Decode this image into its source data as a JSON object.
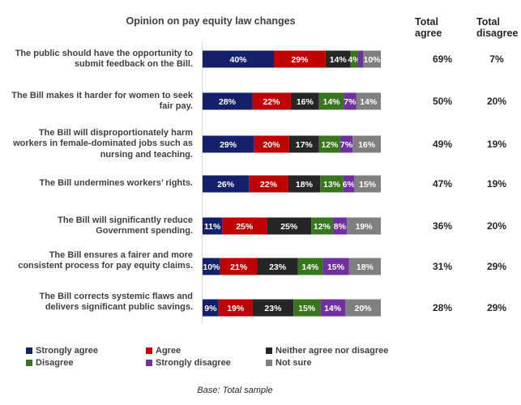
{
  "chart_data": {
    "type": "bar",
    "stacked": true,
    "orientation": "horizontal",
    "title": "Opinion on pay equity law changes",
    "categories": [
      "The public should have the opportunity to submit feedback on the Bill.",
      "The Bill makes it harder for women to seek fair pay.",
      "The Bill will disproportionately harm workers in female-dominated jobs such as nursing and teaching.",
      "The Bill undermines workers’ rights.",
      "The Bill will significantly reduce Government spending.",
      "The Bill ensures a fairer and more consistent process for pay equity claims.",
      "The Bill corrects systemic flaws and delivers significant public savings."
    ],
    "series": [
      {
        "name": "Strongly agree",
        "color": "#14206b",
        "values": [
          40,
          28,
          29,
          26,
          11,
          10,
          9
        ]
      },
      {
        "name": "Agree",
        "color": "#c00000",
        "values": [
          29,
          22,
          20,
          22,
          25,
          21,
          19
        ]
      },
      {
        "name": "Neither agree nor disagree",
        "color": "#262626",
        "values": [
          14,
          16,
          17,
          18,
          25,
          23,
          23
        ]
      },
      {
        "name": "Disagree",
        "color": "#38761d",
        "values": [
          4,
          14,
          12,
          13,
          12,
          14,
          15
        ]
      },
      {
        "name": "Strongly disagree",
        "color": "#7030a0",
        "values": [
          3,
          7,
          7,
          6,
          8,
          15,
          14
        ]
      },
      {
        "name": "Not sure",
        "color": "#7f7f7f",
        "values": [
          10,
          14,
          16,
          15,
          19,
          18,
          20
        ]
      }
    ],
    "hidden_labels": [
      [
        0,
        4
      ]
    ],
    "totals_headers": {
      "agree": "Total agree",
      "disagree": "Total disagree"
    },
    "total_agree": [
      "69%",
      "50%",
      "49%",
      "47%",
      "36%",
      "31%",
      "28%"
    ],
    "total_disagree": [
      "7%",
      "20%",
      "19%",
      "19%",
      "20%",
      "29%",
      "29%"
    ],
    "xlim": [
      0,
      100
    ],
    "legend_position": "bottom",
    "grid": false
  },
  "footer": {
    "base": "Base: Total sample"
  }
}
